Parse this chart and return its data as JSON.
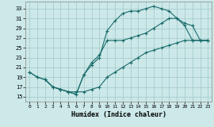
{
  "xlabel": "Humidex (Indice chaleur)",
  "xlim": [
    -0.5,
    23.5
  ],
  "ylim": [
    14,
    34.5
  ],
  "xticks": [
    0,
    1,
    2,
    3,
    4,
    5,
    6,
    7,
    8,
    9,
    10,
    11,
    12,
    13,
    14,
    15,
    16,
    17,
    18,
    19,
    20,
    21,
    22,
    23
  ],
  "yticks": [
    15,
    17,
    19,
    21,
    23,
    25,
    27,
    29,
    31,
    33
  ],
  "bg_color": "#cce8e8",
  "line_color": "#1a6b6b",
  "grid_color": "#a0c8c8",
  "line1_x": [
    0,
    1,
    2,
    3,
    4,
    5,
    6,
    7,
    8,
    9,
    10,
    11,
    12,
    13,
    14,
    15,
    16,
    17,
    18,
    19,
    20,
    21,
    22,
    23
  ],
  "line1_y": [
    20,
    19,
    18.5,
    17,
    16.5,
    16,
    15.5,
    19.5,
    21.5,
    23,
    28.5,
    30.5,
    32,
    32.5,
    32.5,
    33,
    33.5,
    33,
    32.5,
    31,
    29.5,
    26.5,
    26.5,
    26.5
  ],
  "line2_x": [
    2,
    3,
    4,
    5,
    6,
    7,
    8,
    9,
    10,
    11,
    12,
    13,
    14,
    15,
    16,
    17,
    18,
    19,
    20,
    21,
    22,
    23
  ],
  "line2_y": [
    18.5,
    17,
    16.5,
    16,
    15.5,
    19.5,
    22,
    23.5,
    26.5,
    26.5,
    26.5,
    27,
    27.5,
    28,
    29,
    30,
    31,
    31,
    30,
    29.5,
    26.5,
    26.5
  ],
  "line3_x": [
    0,
    1,
    2,
    3,
    4,
    5,
    6,
    7,
    8,
    9,
    10,
    11,
    12,
    13,
    14,
    15,
    16,
    17,
    18,
    19,
    20,
    21,
    22,
    23
  ],
  "line3_y": [
    20,
    19,
    18.5,
    17,
    16.5,
    16,
    16,
    16,
    16.5,
    17,
    19,
    20,
    21,
    22,
    23,
    24,
    24.5,
    25,
    25.5,
    26,
    26.5,
    26.5,
    26.5,
    26.5
  ]
}
